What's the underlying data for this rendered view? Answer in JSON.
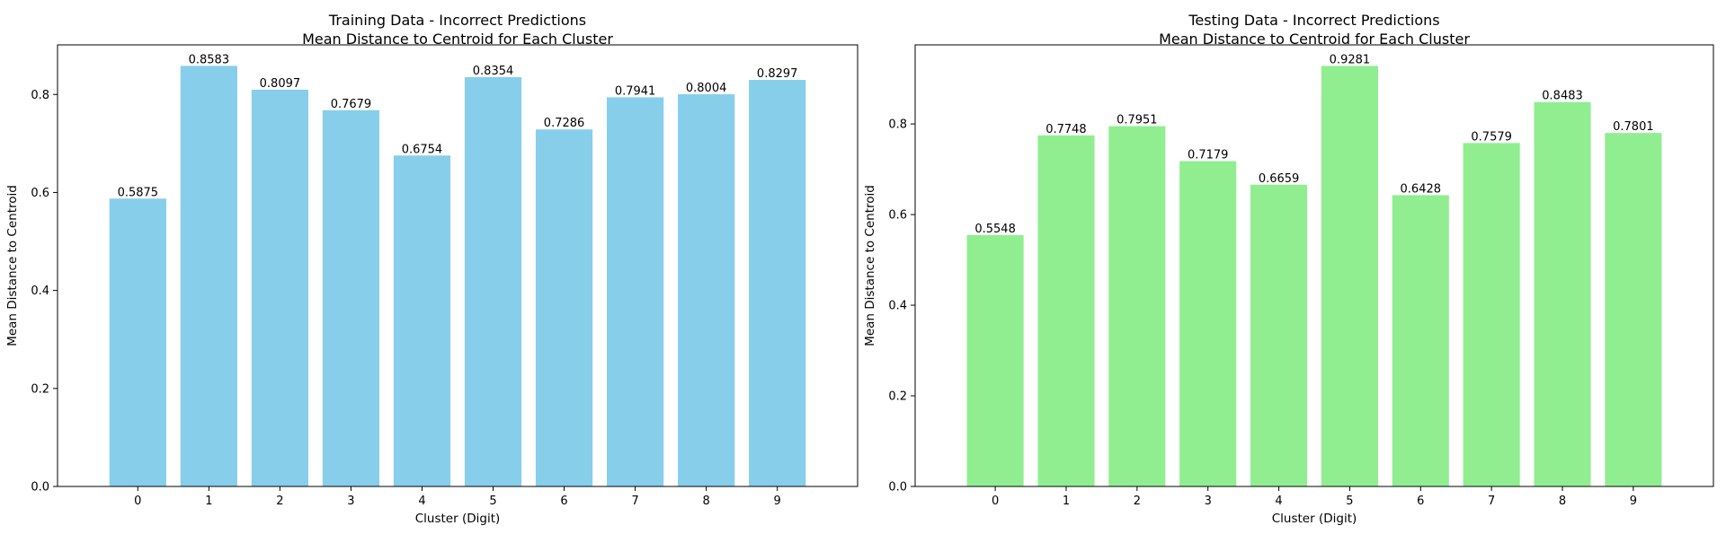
{
  "chart_data": [
    {
      "type": "bar",
      "title": "Training Data - Incorrect Predictions",
      "subtitle": "Mean Distance to Centroid for Each Cluster",
      "xlabel": "Cluster (Digit)",
      "ylabel": "Mean Distance to Centroid",
      "categories": [
        "0",
        "1",
        "2",
        "3",
        "4",
        "5",
        "6",
        "7",
        "8",
        "9"
      ],
      "values": [
        0.5875,
        0.8583,
        0.8097,
        0.7679,
        0.6754,
        0.8354,
        0.7286,
        0.7941,
        0.8004,
        0.8297
      ],
      "value_labels": [
        "0.5875",
        "0.8583",
        "0.8097",
        "0.7679",
        "0.6754",
        "0.8354",
        "0.7286",
        "0.7941",
        "0.8004",
        "0.8297"
      ],
      "ylim": [
        0,
        0.9012
      ],
      "yticks": [
        0.0,
        0.2,
        0.4,
        0.6,
        0.8
      ],
      "ytick_labels": [
        "0.0",
        "0.2",
        "0.4",
        "0.6",
        "0.8"
      ],
      "color": "#87ceeb",
      "grid": false,
      "legend": "none"
    },
    {
      "type": "bar",
      "title": "Testing Data - Incorrect Predictions",
      "subtitle": "Mean Distance to Centroid for Each Cluster",
      "xlabel": "Cluster (Digit)",
      "ylabel": "Mean Distance to Centroid",
      "categories": [
        "0",
        "1",
        "2",
        "3",
        "4",
        "5",
        "6",
        "7",
        "8",
        "9"
      ],
      "values": [
        0.5548,
        0.7748,
        0.7951,
        0.7179,
        0.6659,
        0.9281,
        0.6428,
        0.7579,
        0.8483,
        0.7801
      ],
      "value_labels": [
        "0.5548",
        "0.7748",
        "0.7951",
        "0.7179",
        "0.6659",
        "0.9281",
        "0.6428",
        "0.7579",
        "0.8483",
        "0.7801"
      ],
      "ylim": [
        0,
        0.9745
      ],
      "yticks": [
        0.0,
        0.2,
        0.4,
        0.6,
        0.8
      ],
      "ytick_labels": [
        "0.0",
        "0.2",
        "0.4",
        "0.6",
        "0.8"
      ],
      "color": "#90ee90",
      "grid": false,
      "legend": "none"
    }
  ]
}
